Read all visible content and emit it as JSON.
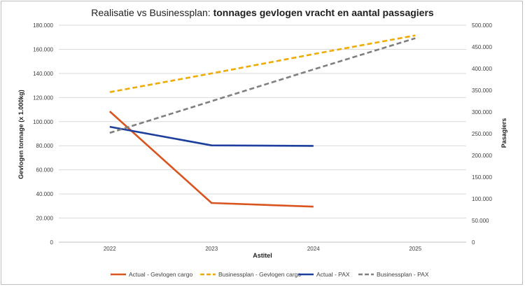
{
  "chart_data": {
    "type": "line",
    "title_prefix": "Realisatie vs Businessplan: ",
    "title_bold": "tonnages gevlogen vracht en aantal passagiers",
    "xlabel": "Astitel",
    "ylabel": "Gevlogen tonnage (x 1.000kg)",
    "y2label": "Pasagiers",
    "categories": [
      "2022",
      "2023",
      "2024",
      "2025"
    ],
    "ylim": [
      0,
      180000
    ],
    "y2lim": [
      0,
      500000
    ],
    "yticks": [
      0,
      20000,
      40000,
      60000,
      80000,
      100000,
      120000,
      140000,
      160000,
      180000
    ],
    "yticklabels": [
      "0",
      "20.000",
      "40.000",
      "60.000",
      "80.000",
      "100.000",
      "120.000",
      "140.000",
      "160.000",
      "180.000"
    ],
    "y2ticks": [
      0,
      50000,
      100000,
      150000,
      200000,
      250000,
      300000,
      350000,
      400000,
      450000,
      500000
    ],
    "y2ticklabels": [
      "0",
      "50.000",
      "100.000",
      "150.000",
      "200.000",
      "250.000",
      "300.000",
      "350.000",
      "400.000",
      "450.000",
      "500.000"
    ],
    "grid": true,
    "legend_position": "bottom",
    "series": [
      {
        "name": "Actual - Gevlogen cargo",
        "axis": "left",
        "color": "#d9541e",
        "dash": false,
        "values": [
          108500,
          32500,
          29500,
          null
        ]
      },
      {
        "name": "Businessplan - Gevlogen cargo",
        "axis": "left",
        "color": "#f0ab00",
        "dash": true,
        "values": [
          124500,
          140000,
          156000,
          171500
        ]
      },
      {
        "name": "Actual - PAX",
        "axis": "right",
        "color": "#1c3f9e",
        "dash": false,
        "values": [
          266000,
          223000,
          222000,
          null
        ]
      },
      {
        "name": "Businessplan - PAX",
        "axis": "right",
        "color": "#7f7f7f",
        "dash": true,
        "values": [
          252000,
          325000,
          398000,
          470000
        ]
      }
    ]
  }
}
